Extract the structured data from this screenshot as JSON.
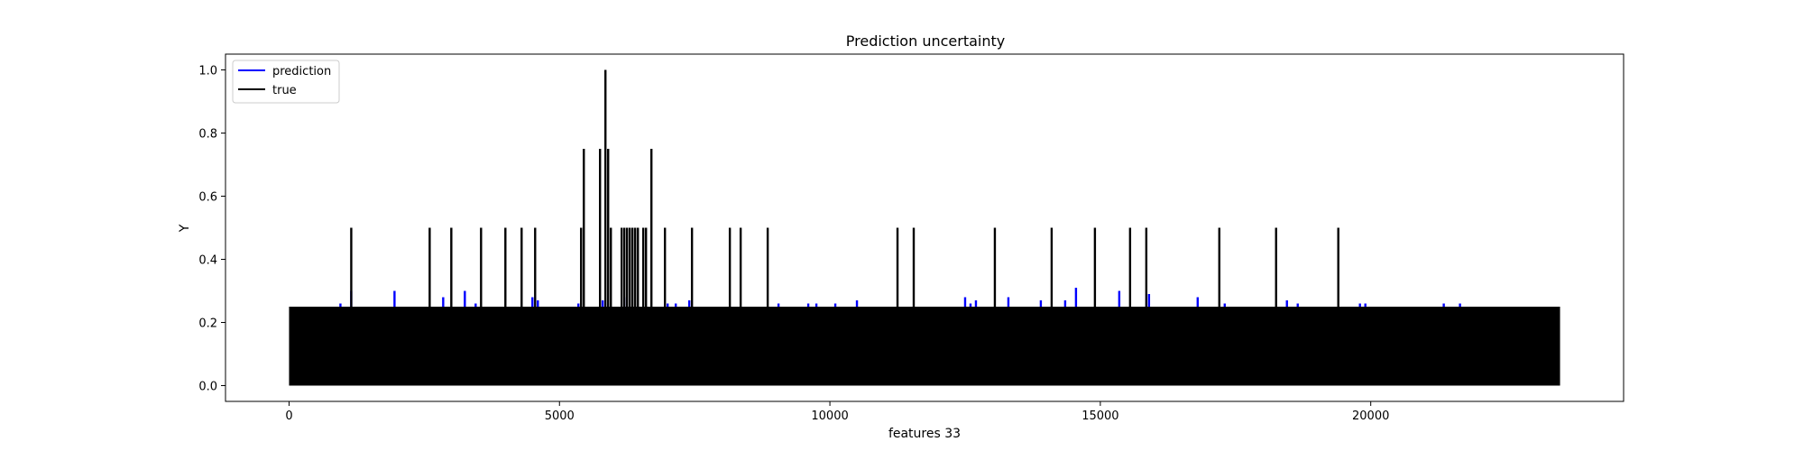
{
  "chart_data": {
    "type": "line",
    "title": "Prediction uncertainty",
    "xlabel": "features 33",
    "ylabel": "Y",
    "xlim": [
      -1175,
      24675
    ],
    "ylim": [
      -0.05,
      1.05
    ],
    "xticks": [
      0,
      5000,
      10000,
      15000,
      20000
    ],
    "yticks": [
      0.0,
      0.2,
      0.4,
      0.6,
      0.8,
      1.0
    ],
    "ytick_labels": [
      "0.0",
      "0.2",
      "0.4",
      "0.6",
      "0.8",
      "1.0"
    ],
    "grid": false,
    "legend_position": "top-left",
    "dense_band": {
      "x_range": [
        0,
        23500
      ],
      "y_range": [
        0.0,
        0.25
      ]
    },
    "series": [
      {
        "name": "prediction",
        "color": "#0000ff",
        "baseline": 0.25,
        "spikes": [
          {
            "x": 950,
            "y": 0.26
          },
          {
            "x": 1150,
            "y": 0.3
          },
          {
            "x": 1950,
            "y": 0.3
          },
          {
            "x": 2850,
            "y": 0.28
          },
          {
            "x": 3250,
            "y": 0.3
          },
          {
            "x": 3450,
            "y": 0.26
          },
          {
            "x": 4500,
            "y": 0.28
          },
          {
            "x": 4600,
            "y": 0.27
          },
          {
            "x": 5350,
            "y": 0.26
          },
          {
            "x": 5800,
            "y": 0.27
          },
          {
            "x": 6200,
            "y": 0.28
          },
          {
            "x": 7000,
            "y": 0.26
          },
          {
            "x": 7150,
            "y": 0.26
          },
          {
            "x": 7400,
            "y": 0.27
          },
          {
            "x": 9050,
            "y": 0.26
          },
          {
            "x": 9600,
            "y": 0.26
          },
          {
            "x": 9750,
            "y": 0.26
          },
          {
            "x": 10100,
            "y": 0.26
          },
          {
            "x": 10500,
            "y": 0.27
          },
          {
            "x": 12500,
            "y": 0.28
          },
          {
            "x": 12600,
            "y": 0.26
          },
          {
            "x": 12700,
            "y": 0.27
          },
          {
            "x": 13300,
            "y": 0.28
          },
          {
            "x": 13900,
            "y": 0.27
          },
          {
            "x": 14350,
            "y": 0.27
          },
          {
            "x": 14550,
            "y": 0.31
          },
          {
            "x": 15350,
            "y": 0.3
          },
          {
            "x": 15900,
            "y": 0.29
          },
          {
            "x": 16800,
            "y": 0.28
          },
          {
            "x": 17300,
            "y": 0.26
          },
          {
            "x": 18450,
            "y": 0.27
          },
          {
            "x": 18650,
            "y": 0.26
          },
          {
            "x": 19800,
            "y": 0.26
          },
          {
            "x": 19900,
            "y": 0.26
          },
          {
            "x": 21350,
            "y": 0.26
          },
          {
            "x": 21650,
            "y": 0.26
          }
        ]
      },
      {
        "name": "true",
        "color": "#000000",
        "baseline": 0.25,
        "spikes": [
          {
            "x": 1150,
            "y": 0.5
          },
          {
            "x": 2600,
            "y": 0.5
          },
          {
            "x": 3000,
            "y": 0.5
          },
          {
            "x": 3550,
            "y": 0.5
          },
          {
            "x": 4000,
            "y": 0.5
          },
          {
            "x": 4300,
            "y": 0.5
          },
          {
            "x": 4550,
            "y": 0.5
          },
          {
            "x": 5400,
            "y": 0.5
          },
          {
            "x": 5450,
            "y": 0.75
          },
          {
            "x": 5750,
            "y": 0.75
          },
          {
            "x": 5850,
            "y": 1.0
          },
          {
            "x": 5900,
            "y": 0.75
          },
          {
            "x": 5950,
            "y": 0.5
          },
          {
            "x": 6150,
            "y": 0.5
          },
          {
            "x": 6200,
            "y": 0.5
          },
          {
            "x": 6250,
            "y": 0.5
          },
          {
            "x": 6300,
            "y": 0.5
          },
          {
            "x": 6350,
            "y": 0.5
          },
          {
            "x": 6400,
            "y": 0.5
          },
          {
            "x": 6450,
            "y": 0.5
          },
          {
            "x": 6550,
            "y": 0.5
          },
          {
            "x": 6600,
            "y": 0.5
          },
          {
            "x": 6700,
            "y": 0.75
          },
          {
            "x": 6950,
            "y": 0.5
          },
          {
            "x": 7450,
            "y": 0.5
          },
          {
            "x": 8150,
            "y": 0.5
          },
          {
            "x": 8350,
            "y": 0.5
          },
          {
            "x": 8850,
            "y": 0.5
          },
          {
            "x": 11250,
            "y": 0.5
          },
          {
            "x": 11550,
            "y": 0.5
          },
          {
            "x": 13050,
            "y": 0.5
          },
          {
            "x": 14100,
            "y": 0.5
          },
          {
            "x": 14900,
            "y": 0.5
          },
          {
            "x": 15550,
            "y": 0.5
          },
          {
            "x": 15850,
            "y": 0.5
          },
          {
            "x": 17200,
            "y": 0.5
          },
          {
            "x": 18250,
            "y": 0.5
          },
          {
            "x": 19400,
            "y": 0.5
          }
        ]
      }
    ]
  }
}
